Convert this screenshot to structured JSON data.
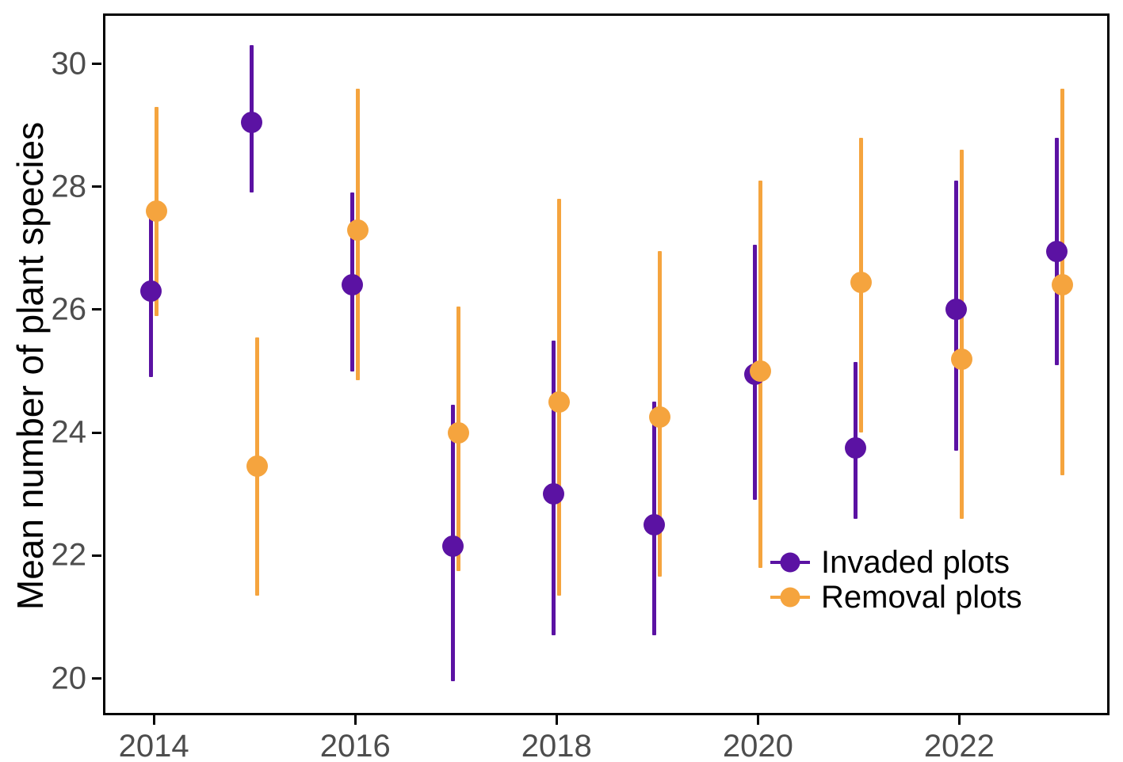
{
  "figure": {
    "background": "#ffffff",
    "axis_color": "#000000",
    "tick_label_color": "#4d4d4d"
  },
  "y_axis": {
    "title": "Mean number of plant species",
    "ticks": [
      20,
      22,
      24,
      26,
      28,
      30
    ],
    "range": [
      19.44,
      30.78
    ]
  },
  "x_axis": {
    "tick_labels": [
      "2014",
      "2016",
      "2018",
      "2020",
      "2022"
    ],
    "tick_years": [
      2014,
      2016,
      2018,
      2020,
      2022
    ]
  },
  "legend": {
    "items": [
      {
        "label": "Invaded plots",
        "color": "#5B12A3"
      },
      {
        "label": "Removal plots",
        "color": "#F5A43E"
      }
    ]
  },
  "chart_data": {
    "type": "pointrange",
    "title": "",
    "xlabel": "",
    "ylabel": "Mean number of plant species",
    "grid": false,
    "legend_position": "inside bottom-right",
    "ylim": [
      19.4,
      30.8
    ],
    "x": [
      2014,
      2015,
      2016,
      2017,
      2018,
      2019,
      2020,
      2021,
      2022,
      2023
    ],
    "series": [
      {
        "name": "Invaded plots",
        "color": "#5B12A3",
        "means": [
          26.3,
          29.05,
          26.4,
          22.15,
          23.0,
          22.5,
          24.95,
          23.75,
          26.0,
          26.95
        ],
        "lower": [
          24.9,
          27.9,
          25.0,
          19.95,
          20.7,
          20.7,
          22.9,
          22.6,
          23.7,
          25.1
        ],
        "upper": [
          27.7,
          30.3,
          27.9,
          24.45,
          25.5,
          24.5,
          27.05,
          25.15,
          28.1,
          28.8
        ]
      },
      {
        "name": "Removal plots",
        "color": "#F5A43E",
        "means": [
          27.6,
          23.45,
          27.3,
          24.0,
          24.5,
          24.25,
          25.0,
          26.45,
          25.2,
          26.4
        ],
        "lower": [
          25.9,
          21.35,
          24.85,
          21.75,
          21.35,
          21.65,
          21.8,
          24.0,
          22.6,
          23.3
        ],
        "upper": [
          29.3,
          25.55,
          29.6,
          26.05,
          27.8,
          26.95,
          28.1,
          28.8,
          28.6,
          29.6
        ]
      }
    ]
  }
}
